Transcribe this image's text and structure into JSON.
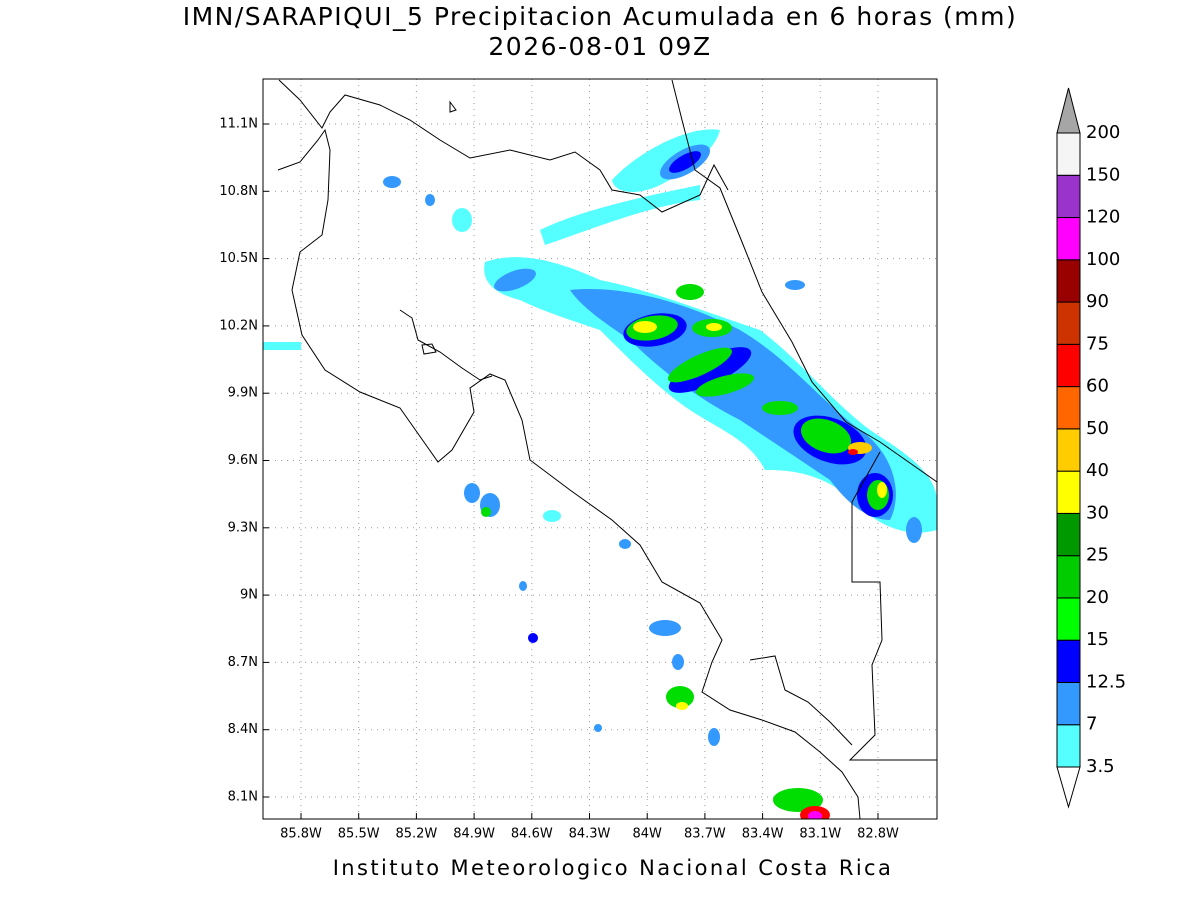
{
  "title": "IMN/SARAPIQUI_5 Precipitacion Acumulada en 6 horas (mm)",
  "subtitle": "2026-08-01 09Z",
  "lon_labels": [
    "85.8W",
    "85.5W",
    "85.2W",
    "84.9W",
    "84.6W",
    "84.3W",
    "84W",
    "83.7W",
    "83.4W",
    "83.1W",
    "82.8W"
  ],
  "lat_labels": [
    "11.1N",
    "10.8N",
    "10.5N",
    "10.2N",
    "9.9N",
    "9.6N",
    "9.3N",
    "9N",
    "8.7N",
    "8.4N",
    "8.1N"
  ],
  "colorbar_labels": [
    "3.5",
    "7",
    "12.5",
    "15",
    "20",
    "25",
    "30",
    "40",
    "50",
    "60",
    "75",
    "90",
    "100",
    "120",
    "150",
    "200"
  ],
  "footer": "Instituto Meteorologico Nacional Costa Rica"
}
